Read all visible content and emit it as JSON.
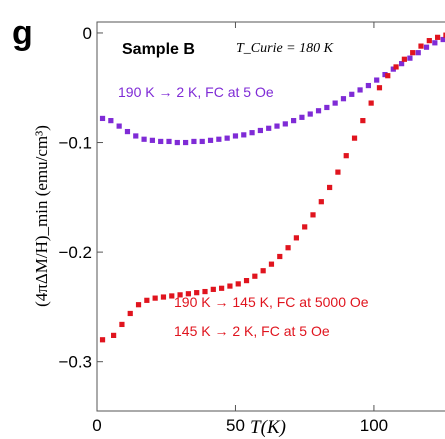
{
  "panel_label": "g",
  "chart_data": {
    "type": "scatter",
    "sample_label": "Sample B",
    "curie_label": "T_Curie = 180 K",
    "xlabel": "T(K)",
    "ylabel": "(4πΔM/H)_min (emu/cm³)",
    "xlim": [
      0,
      130
    ],
    "ylim": [
      -0.345,
      0.01
    ],
    "xticks": [
      0,
      50,
      100
    ],
    "yticks": [
      0,
      -0.1,
      -0.2,
      -0.3
    ],
    "ytick_labels": [
      "0",
      "−0.1",
      "−0.2",
      "−0.3"
    ],
    "grid": false,
    "series": [
      {
        "name": "190 K → 2 K, FC at 5 Oe",
        "color": "#7f2bd6",
        "x": [
          2,
          5,
          8,
          11,
          14,
          17,
          20,
          23,
          26,
          29,
          32,
          35,
          38,
          41,
          44,
          47,
          50,
          53,
          56,
          59,
          62,
          65,
          68,
          71,
          74,
          77,
          80,
          83,
          86,
          89,
          92,
          95,
          98,
          101,
          104,
          107,
          110,
          113,
          116,
          119,
          122,
          125,
          128
        ],
        "y": [
          -0.078,
          -0.08,
          -0.085,
          -0.09,
          -0.094,
          -0.097,
          -0.098,
          -0.099,
          -0.099,
          -0.1,
          -0.1,
          -0.099,
          -0.099,
          -0.098,
          -0.097,
          -0.096,
          -0.094,
          -0.093,
          -0.091,
          -0.089,
          -0.087,
          -0.085,
          -0.083,
          -0.08,
          -0.077,
          -0.074,
          -0.071,
          -0.068,
          -0.064,
          -0.06,
          -0.056,
          -0.052,
          -0.048,
          -0.043,
          -0.038,
          -0.033,
          -0.028,
          -0.023,
          -0.018,
          -0.013,
          -0.009,
          -0.006,
          -0.004
        ]
      },
      {
        "name": "190 K → 145 K, FC at 5000 Oe / 145 K → 2 K, FC at 5 Oe",
        "color": "#e0141e",
        "x": [
          2,
          6,
          9,
          12,
          15,
          18,
          21,
          24,
          27,
          30,
          33,
          36,
          39,
          42,
          45,
          48,
          51,
          54,
          57,
          60,
          63,
          66,
          69,
          72,
          75,
          78,
          81,
          84,
          87,
          90,
          93,
          96,
          99,
          102,
          105,
          108,
          111,
          114,
          117,
          120,
          123,
          126,
          129
        ],
        "y": [
          -0.28,
          -0.276,
          -0.266,
          -0.256,
          -0.248,
          -0.244,
          -0.242,
          -0.241,
          -0.24,
          -0.239,
          -0.238,
          -0.237,
          -0.236,
          -0.234,
          -0.233,
          -0.231,
          -0.229,
          -0.226,
          -0.222,
          -0.217,
          -0.211,
          -0.204,
          -0.196,
          -0.187,
          -0.177,
          -0.166,
          -0.154,
          -0.141,
          -0.127,
          -0.112,
          -0.096,
          -0.08,
          -0.064,
          -0.05,
          -0.039,
          -0.031,
          -0.024,
          -0.018,
          -0.012,
          -0.007,
          -0.004,
          -0.002,
          -0.001
        ]
      }
    ],
    "annotations": [
      {
        "text": "190 K → 2 K, FC at 5 Oe",
        "color": "#7f2bd6"
      },
      {
        "text": "190 K → 145 K,  FC at 5000 Oe",
        "color": "#e0141e"
      },
      {
        "text": "145 K → 2 K,  FC at 5 Oe",
        "color": "#e0141e"
      }
    ]
  }
}
